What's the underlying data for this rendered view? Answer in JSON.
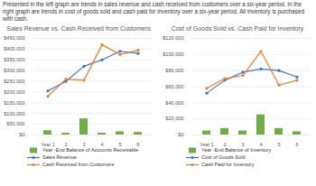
{
  "intro": {
    "text": "Presented in the left graph are trends in sales revenue and cash received from customers over a six-year period. In the right graph are trends in cost of goods sold and cash paid for inventory over a six-year period. All inventory is purchased with cash."
  },
  "chart_data": [
    {
      "type": "bar",
      "title": "Sales Revenue vs. Cash Received from Customers",
      "categories": [
        "Year 1",
        "2",
        "3",
        "4",
        "5",
        "6"
      ],
      "series": [
        {
          "name": "Year -End Balance of Accounts Receivable",
          "type": "bar",
          "color": "#70ad47",
          "values": [
            20000,
            8000,
            75000,
            8000,
            15000,
            12000
          ]
        },
        {
          "name": "Sales Revenue",
          "type": "line",
          "color": "#4472c4",
          "marker": "circle",
          "values": [
            205000,
            250000,
            320000,
            350000,
            390000,
            380000
          ]
        },
        {
          "name": "Cash Received from Customers",
          "type": "line",
          "color": "#ed7d31",
          "marker": "circle",
          "values": [
            180000,
            260000,
            255000,
            420000,
            375000,
            395000
          ]
        }
      ],
      "ylim": [
        0,
        450000
      ],
      "yticks": [
        {
          "value": 0,
          "label": "$0"
        },
        {
          "value": 50000,
          "label": "$50,000"
        },
        {
          "value": 100000,
          "label": "$100,000"
        },
        {
          "value": 150000,
          "label": "$150,000"
        },
        {
          "value": 200000,
          "label": "$200,000"
        },
        {
          "value": 250000,
          "label": "$250,000"
        },
        {
          "value": 300000,
          "label": "$300,000"
        },
        {
          "value": 350000,
          "label": "$350,000"
        },
        {
          "value": 400000,
          "label": "$400,000"
        },
        {
          "value": 450000,
          "label": "$450,000"
        }
      ],
      "grid": true,
      "legend": "bottom"
    },
    {
      "type": "bar",
      "title": "Cost of Goods Sold vs. Cash Paid for Inventory",
      "categories": [
        "Year 1",
        "2",
        "3",
        "4",
        "5",
        "6"
      ],
      "series": [
        {
          "name": "Year -End Balance of Inventory",
          "type": "bar",
          "color": "#70ad47",
          "values": [
            5000,
            8000,
            5000,
            25000,
            8000,
            4000
          ]
        },
        {
          "name": "Cost of Goods Sold",
          "type": "line",
          "color": "#4472c4",
          "marker": "circle",
          "values": [
            52000,
            68000,
            78000,
            82000,
            80000,
            72000
          ]
        },
        {
          "name": "Cash Paid for Inventory",
          "type": "line",
          "color": "#ed7d31",
          "marker": "circle",
          "values": [
            58000,
            70000,
            74000,
            104000,
            62000,
            68000
          ]
        }
      ],
      "ylim": [
        0,
        120000
      ],
      "yticks": [
        {
          "value": 0,
          "label": "$0"
        },
        {
          "value": 20000,
          "label": "$20,000"
        },
        {
          "value": 40000,
          "label": "$40,000"
        },
        {
          "value": 60000,
          "label": "$60,000"
        },
        {
          "value": 80000,
          "label": "$80,000"
        },
        {
          "value": 100000,
          "label": "$100,000"
        },
        {
          "value": 120000,
          "label": "$120,000"
        }
      ],
      "grid": true,
      "legend": "bottom"
    }
  ]
}
